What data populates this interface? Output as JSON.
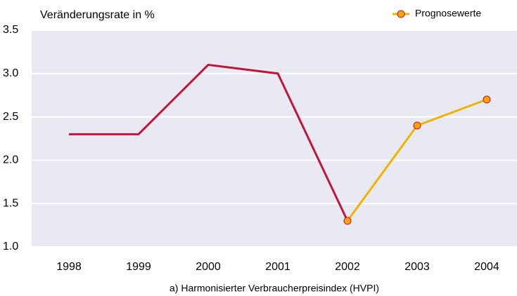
{
  "chart_data": {
    "type": "line",
    "y_axis_label": "Veränderungsrate in %",
    "x_axis_label": "a) Harmonisierter Verbraucherpreisindex (HVPI)",
    "categories": [
      "1998",
      "1999",
      "2000",
      "2001",
      "2002",
      "2003",
      "2004"
    ],
    "series": [
      {
        "color": "#c0163a",
        "markers": false,
        "values": [
          2.3,
          2.3,
          3.1,
          3.0,
          1.3,
          null,
          null
        ]
      },
      {
        "name": "Prognosewerte",
        "color": "#f0b400",
        "markers": true,
        "marker_color": "#f7a600",
        "marker_edge": "#c0163a",
        "values": [
          null,
          null,
          null,
          null,
          1.3,
          2.4,
          2.7
        ]
      }
    ],
    "ylim": [
      1.0,
      3.5
    ],
    "yticks": [
      {
        "value": 1.0,
        "label": "1.0"
      },
      1.5,
      {
        "value": 2.0,
        "label": "2.0"
      },
      2.5,
      {
        "value": 3.0,
        "label": "3.0"
      },
      3.5
    ],
    "grid": true,
    "legend": "upper right",
    "background": "#e9e9f3"
  }
}
